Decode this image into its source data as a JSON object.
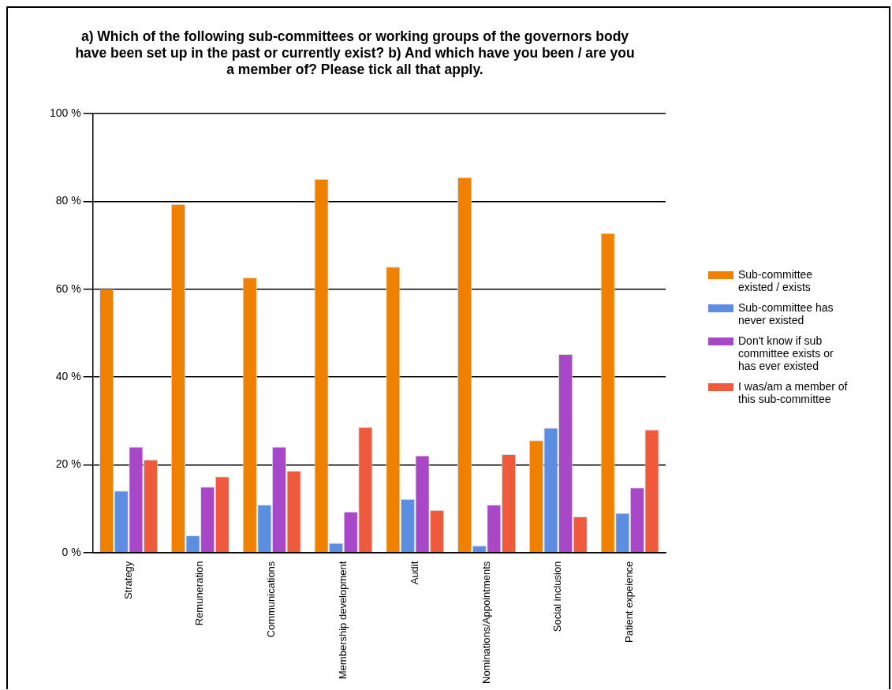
{
  "chart_data": {
    "type": "bar",
    "title": "a) Which of the following sub-committees or working groups of the governors body have been set up in the past or currently exist? b) And which have you been / are you a member of? Please tick all that apply.",
    "categories": [
      "Strategy",
      "Remuneration",
      "Communications",
      "Membership development",
      "Audit",
      "Nominations/Appointments",
      "Social inclusion",
      "Patient expeience"
    ],
    "series": [
      {
        "name": "Sub-committee existed / exists",
        "color": "#f08000",
        "values": [
          60,
          79.4,
          62.7,
          85.1,
          65.1,
          85.5,
          25.6,
          72.8
        ]
      },
      {
        "name": "Sub-committee has never existed",
        "color": "#5b8de0",
        "values": [
          14.1,
          3.9,
          10.9,
          2.2,
          12.2,
          1.6,
          28.4,
          9.0
        ]
      },
      {
        "name": "Don't know if sub committee exists or has ever existed",
        "color": "#a848c8",
        "values": [
          24.1,
          15,
          24.1,
          9.3,
          22.1,
          10.9,
          45.2,
          14.8
        ]
      },
      {
        "name": "I was/am a member of this sub-committee",
        "color": "#f05a3c",
        "values": [
          21.2,
          17.3,
          18.6,
          28.6,
          9.7,
          22.4,
          8.2,
          28.0
        ]
      }
    ],
    "ylim": [
      0,
      100
    ],
    "yticks": [
      {
        "value": 0,
        "label": "0 %"
      },
      {
        "value": 20,
        "label": "20 %"
      },
      {
        "value": 40,
        "label": "40 %"
      },
      {
        "value": 60,
        "label": "60 %"
      },
      {
        "value": 80,
        "label": "80 %"
      },
      {
        "value": 100,
        "label": "100 %"
      }
    ],
    "grid": "y",
    "legend": "right"
  }
}
